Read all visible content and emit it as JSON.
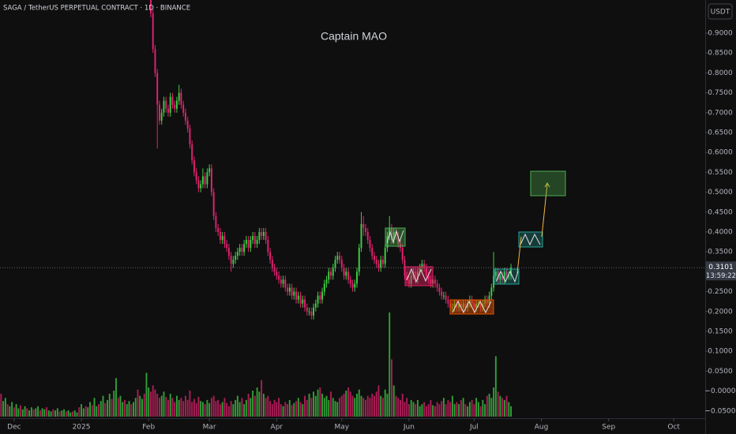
{
  "chart_data": {
    "type": "candlestick",
    "title": "SAGA / TetherUS PERPETUAL CONTRACT · 1D · BINANCE",
    "annotation": "Captain MAO",
    "currency": "USDT",
    "last_price": 0.3101,
    "countdown": "13:59:22",
    "up_color": "#3fcf45",
    "down_color": "#e2236f",
    "xlim": [
      -0.5,
      324.5
    ],
    "xticks": [
      {
        "value": 6,
        "label": "Dec"
      },
      {
        "value": 37,
        "label": "2025"
      },
      {
        "value": 68,
        "label": "Feb"
      },
      {
        "value": 96,
        "label": "Mar"
      },
      {
        "value": 127,
        "label": "Apr"
      },
      {
        "value": 157,
        "label": "May"
      },
      {
        "value": 188,
        "label": "Jun"
      },
      {
        "value": 218,
        "label": "Jul"
      },
      {
        "value": 249,
        "label": "Aug"
      },
      {
        "value": 280,
        "label": "Sep"
      },
      {
        "value": 310,
        "label": "Oct"
      }
    ],
    "ylim": [
      -0.0683,
      0.9833
    ],
    "yticks": [
      {
        "value": 0.9,
        "label": "0.9000"
      },
      {
        "value": 0.85,
        "label": "0.8500"
      },
      {
        "value": 0.8,
        "label": "0.8000"
      },
      {
        "value": 0.75,
        "label": "0.7500"
      },
      {
        "value": 0.7,
        "label": "0.7000"
      },
      {
        "value": 0.65,
        "label": "0.6500"
      },
      {
        "value": 0.6,
        "label": "0.6000"
      },
      {
        "value": 0.55,
        "label": "0.5500"
      },
      {
        "value": 0.5,
        "label": "0.5000"
      },
      {
        "value": 0.45,
        "label": "0.4500"
      },
      {
        "value": 0.4,
        "label": "0.4000"
      },
      {
        "value": 0.35,
        "label": "0.3500"
      },
      {
        "value": 0.3,
        "label": "0.3000"
      },
      {
        "value": 0.25,
        "label": "0.2500"
      },
      {
        "value": 0.2,
        "label": "0.2000"
      },
      {
        "value": 0.15,
        "label": "0.1500"
      },
      {
        "value": 0.1,
        "label": "0.1000"
      },
      {
        "value": 0.05,
        "label": "0.0500"
      },
      {
        "value": 0,
        "label": "−0.0000"
      },
      {
        "value": -0.05,
        "label": "−0.0500"
      }
    ],
    "open": [
      null,
      null,
      null,
      null,
      null,
      null,
      null,
      null,
      null,
      null,
      null,
      null,
      null,
      null,
      null,
      null,
      null,
      null,
      null,
      null,
      null,
      null,
      null,
      null,
      null,
      null,
      null,
      null,
      null,
      null,
      null,
      null,
      null,
      null,
      null,
      null,
      null,
      null,
      null,
      null,
      null,
      null,
      null,
      null,
      null,
      null,
      null,
      null,
      null,
      null,
      null,
      null,
      null,
      null,
      null,
      null,
      null,
      null,
      null,
      null,
      null,
      null,
      null,
      null,
      null,
      null,
      null,
      null,
      null,
      1.0,
      0.95,
      0.86,
      0.8,
      0.72,
      0.68,
      0.7,
      0.73,
      0.71,
      0.7,
      0.74,
      0.72,
      0.71,
      0.73,
      0.75,
      0.72,
      0.7,
      0.68,
      0.66,
      0.62,
      0.58,
      0.55,
      0.53,
      0.51,
      0.52,
      0.54,
      0.52,
      0.55,
      0.56,
      0.5,
      0.44,
      0.41,
      0.4,
      0.38,
      0.39,
      0.37,
      0.36,
      0.34,
      0.32,
      0.33,
      0.34,
      0.35,
      0.36,
      0.35,
      0.37,
      0.38,
      0.36,
      0.38,
      0.39,
      0.37,
      0.38,
      0.4,
      0.39,
      0.4,
      0.38,
      0.35,
      0.33,
      0.31,
      0.3,
      0.29,
      0.28,
      0.27,
      0.28,
      0.26,
      0.25,
      0.26,
      0.24,
      0.25,
      0.23,
      0.24,
      0.22,
      0.23,
      0.21,
      0.2,
      0.2,
      0.19,
      0.21,
      0.22,
      0.24,
      0.23,
      0.25,
      0.27,
      0.28,
      0.3,
      0.29,
      0.31,
      0.33,
      0.34,
      0.33,
      0.31,
      0.29,
      0.3,
      0.28,
      0.27,
      0.26,
      0.27,
      0.3,
      0.36,
      0.42,
      0.41,
      0.4,
      0.38,
      0.36,
      0.34,
      0.33,
      0.32,
      0.31,
      0.33,
      0.32,
      0.36,
      0.39,
      0.41,
      0.38,
      0.4,
      0.39,
      0.37,
      0.36,
      0.33,
      0.29,
      0.28,
      0.27,
      0.29,
      0.3,
      0.28,
      0.3,
      0.31,
      0.32,
      0.31,
      0.29,
      0.28,
      0.27,
      0.28,
      0.27,
      0.26,
      0.25,
      0.24,
      0.24,
      0.23,
      0.22,
      0.21,
      0.21,
      0.22,
      0.21,
      0.22,
      0.21,
      0.22,
      0.21,
      0.22,
      0.23,
      0.22,
      0.21,
      0.22,
      0.22,
      0.21,
      0.22,
      0.23,
      0.22,
      0.24,
      0.26,
      0.29,
      0.3,
      0.28,
      0.29,
      0.28,
      0.3,
      0.29,
      0.29
    ],
    "high": [
      null,
      null,
      null,
      null,
      null,
      null,
      null,
      null,
      null,
      null,
      null,
      null,
      null,
      null,
      null,
      null,
      null,
      null,
      null,
      null,
      null,
      null,
      null,
      null,
      null,
      null,
      null,
      null,
      null,
      null,
      null,
      null,
      null,
      null,
      null,
      null,
      null,
      null,
      null,
      null,
      null,
      null,
      null,
      null,
      null,
      null,
      null,
      null,
      null,
      null,
      null,
      null,
      null,
      null,
      null,
      null,
      null,
      null,
      null,
      null,
      null,
      null,
      null,
      null,
      null,
      null,
      null,
      null,
      null,
      1.01,
      0.96,
      0.87,
      0.81,
      0.73,
      0.71,
      0.74,
      0.74,
      0.72,
      0.75,
      0.75,
      0.73,
      0.74,
      0.77,
      0.76,
      0.73,
      0.71,
      0.69,
      0.67,
      0.63,
      0.59,
      0.56,
      0.54,
      0.53,
      0.56,
      0.55,
      0.56,
      0.57,
      0.57,
      0.51,
      0.45,
      0.42,
      0.41,
      0.4,
      0.4,
      0.38,
      0.37,
      0.35,
      0.34,
      0.35,
      0.36,
      0.37,
      0.37,
      0.38,
      0.39,
      0.39,
      0.39,
      0.4,
      0.4,
      0.39,
      0.41,
      0.41,
      0.41,
      0.41,
      0.39,
      0.36,
      0.34,
      0.32,
      0.31,
      0.3,
      0.29,
      0.29,
      0.29,
      0.27,
      0.27,
      0.27,
      0.26,
      0.26,
      0.25,
      0.25,
      0.24,
      0.24,
      0.22,
      0.21,
      0.21,
      0.22,
      0.23,
      0.25,
      0.25,
      0.26,
      0.28,
      0.29,
      0.31,
      0.31,
      0.32,
      0.34,
      0.35,
      0.35,
      0.34,
      0.32,
      0.31,
      0.31,
      0.29,
      0.28,
      0.28,
      0.31,
      0.37,
      0.45,
      0.44,
      0.42,
      0.41,
      0.39,
      0.37,
      0.35,
      0.34,
      0.33,
      0.34,
      0.34,
      0.37,
      0.4,
      0.44,
      0.42,
      0.41,
      0.41,
      0.4,
      0.38,
      0.37,
      0.34,
      0.3,
      0.29,
      0.3,
      0.31,
      0.31,
      0.31,
      0.32,
      0.33,
      0.33,
      0.32,
      0.3,
      0.29,
      0.29,
      0.29,
      0.28,
      0.27,
      0.26,
      0.25,
      0.25,
      0.24,
      0.23,
      0.22,
      0.23,
      0.23,
      0.23,
      0.23,
      0.23,
      0.23,
      0.23,
      0.24,
      0.24,
      0.23,
      0.23,
      0.23,
      0.23,
      0.23,
      0.24,
      0.24,
      0.25,
      0.27,
      0.35,
      0.31,
      0.31,
      0.3,
      0.3,
      0.31,
      0.31,
      0.3,
      0.32
    ],
    "low": [
      null,
      null,
      null,
      null,
      null,
      null,
      null,
      null,
      null,
      null,
      null,
      null,
      null,
      null,
      null,
      null,
      null,
      null,
      null,
      null,
      null,
      null,
      null,
      null,
      null,
      null,
      null,
      null,
      null,
      null,
      null,
      null,
      null,
      null,
      null,
      null,
      null,
      null,
      null,
      null,
      null,
      null,
      null,
      null,
      null,
      null,
      null,
      null,
      null,
      null,
      null,
      null,
      null,
      null,
      null,
      null,
      null,
      null,
      null,
      null,
      null,
      null,
      null,
      null,
      null,
      null,
      null,
      null,
      null,
      0.94,
      0.85,
      0.79,
      0.61,
      0.67,
      0.67,
      0.69,
      0.7,
      0.69,
      0.69,
      0.71,
      0.7,
      0.7,
      0.72,
      0.71,
      0.69,
      0.67,
      0.65,
      0.61,
      0.57,
      0.54,
      0.52,
      0.5,
      0.5,
      0.51,
      0.51,
      0.51,
      0.54,
      0.49,
      0.43,
      0.4,
      0.39,
      0.37,
      0.37,
      0.36,
      0.35,
      0.33,
      0.3,
      0.31,
      0.32,
      0.33,
      0.34,
      0.34,
      0.34,
      0.36,
      0.35,
      0.35,
      0.37,
      0.36,
      0.36,
      0.37,
      0.38,
      0.38,
      0.37,
      0.34,
      0.32,
      0.3,
      0.29,
      0.28,
      0.27,
      0.26,
      0.26,
      0.25,
      0.24,
      0.24,
      0.23,
      0.23,
      0.22,
      0.22,
      0.21,
      0.21,
      0.2,
      0.19,
      0.19,
      0.18,
      0.18,
      0.2,
      0.21,
      0.22,
      0.22,
      0.24,
      0.26,
      0.27,
      0.28,
      0.28,
      0.3,
      0.32,
      0.32,
      0.3,
      0.28,
      0.28,
      0.27,
      0.26,
      0.25,
      0.25,
      0.26,
      0.29,
      0.35,
      0.39,
      0.39,
      0.37,
      0.35,
      0.33,
      0.32,
      0.31,
      0.3,
      0.3,
      0.31,
      0.31,
      0.35,
      0.38,
      0.37,
      0.37,
      0.38,
      0.36,
      0.35,
      0.32,
      0.28,
      0.27,
      0.26,
      0.26,
      0.28,
      0.27,
      0.27,
      0.29,
      0.3,
      0.3,
      0.28,
      0.27,
      0.26,
      0.26,
      0.26,
      0.25,
      0.24,
      0.23,
      0.23,
      0.22,
      0.21,
      0.2,
      0.2,
      0.2,
      0.2,
      0.2,
      0.2,
      0.2,
      0.2,
      0.2,
      0.21,
      0.21,
      0.2,
      0.2,
      0.21,
      0.2,
      0.2,
      0.21,
      0.21,
      0.21,
      0.23,
      0.25,
      0.28,
      0.27,
      0.27,
      0.27,
      0.27,
      0.28,
      0.28,
      0.28
    ],
    "close": [
      null,
      null,
      null,
      null,
      null,
      null,
      null,
      null,
      null,
      null,
      null,
      null,
      null,
      null,
      null,
      null,
      null,
      null,
      null,
      null,
      null,
      null,
      null,
      null,
      null,
      null,
      null,
      null,
      null,
      null,
      null,
      null,
      null,
      null,
      null,
      null,
      null,
      null,
      null,
      null,
      null,
      null,
      null,
      null,
      null,
      null,
      null,
      null,
      null,
      null,
      null,
      null,
      null,
      null,
      null,
      null,
      null,
      null,
      null,
      null,
      null,
      null,
      null,
      null,
      null,
      null,
      null,
      null,
      null,
      0.95,
      0.86,
      0.8,
      0.72,
      0.68,
      0.7,
      0.73,
      0.71,
      0.7,
      0.74,
      0.72,
      0.71,
      0.73,
      0.75,
      0.72,
      0.7,
      0.68,
      0.66,
      0.62,
      0.58,
      0.55,
      0.53,
      0.51,
      0.52,
      0.54,
      0.52,
      0.55,
      0.56,
      0.5,
      0.44,
      0.41,
      0.4,
      0.38,
      0.39,
      0.37,
      0.36,
      0.34,
      0.32,
      0.33,
      0.34,
      0.35,
      0.36,
      0.35,
      0.37,
      0.38,
      0.36,
      0.38,
      0.39,
      0.37,
      0.38,
      0.4,
      0.39,
      0.4,
      0.38,
      0.35,
      0.33,
      0.31,
      0.3,
      0.29,
      0.28,
      0.27,
      0.28,
      0.26,
      0.25,
      0.26,
      0.24,
      0.25,
      0.23,
      0.24,
      0.22,
      0.23,
      0.21,
      0.2,
      0.2,
      0.19,
      0.21,
      0.22,
      0.24,
      0.23,
      0.25,
      0.27,
      0.28,
      0.3,
      0.29,
      0.31,
      0.33,
      0.34,
      0.33,
      0.31,
      0.29,
      0.3,
      0.28,
      0.27,
      0.26,
      0.27,
      0.3,
      0.36,
      0.42,
      0.41,
      0.4,
      0.38,
      0.36,
      0.34,
      0.33,
      0.32,
      0.31,
      0.33,
      0.32,
      0.36,
      0.39,
      0.41,
      0.38,
      0.4,
      0.39,
      0.37,
      0.36,
      0.33,
      0.29,
      0.28,
      0.27,
      0.29,
      0.3,
      0.28,
      0.3,
      0.31,
      0.32,
      0.31,
      0.29,
      0.28,
      0.27,
      0.28,
      0.27,
      0.26,
      0.25,
      0.24,
      0.24,
      0.23,
      0.22,
      0.21,
      0.21,
      0.22,
      0.21,
      0.22,
      0.21,
      0.22,
      0.21,
      0.22,
      0.23,
      0.22,
      0.21,
      0.22,
      0.22,
      0.21,
      0.22,
      0.23,
      0.22,
      0.24,
      0.26,
      0.29,
      0.3,
      0.28,
      0.29,
      0.28,
      0.3,
      0.29,
      0.29,
      0.31
    ],
    "volume": [
      22,
      15,
      18,
      12,
      10,
      14,
      9,
      12,
      8,
      11,
      7,
      10,
      8,
      6,
      9,
      7,
      8,
      10,
      6,
      8,
      7,
      9,
      6,
      5,
      7,
      6,
      8,
      5,
      6,
      7,
      5,
      6,
      4,
      5,
      6,
      4,
      9,
      12,
      8,
      10,
      9,
      14,
      11,
      18,
      10,
      12,
      15,
      20,
      13,
      16,
      22,
      17,
      25,
      37,
      18,
      20,
      14,
      16,
      12,
      15,
      12,
      14,
      18,
      26,
      20,
      17,
      22,
      42,
      28,
      24,
      30,
      26,
      22,
      18,
      20,
      24,
      19,
      16,
      22,
      18,
      14,
      20,
      16,
      18,
      15,
      20,
      16,
      25,
      14,
      17,
      13,
      19,
      15,
      14,
      12,
      16,
      13,
      18,
      20,
      15,
      16,
      12,
      14,
      18,
      13,
      10,
      15,
      12,
      16,
      20,
      14,
      18,
      12,
      16,
      22,
      18,
      25,
      20,
      28,
      24,
      35,
      22,
      18,
      20,
      15,
      12,
      16,
      14,
      18,
      12,
      10,
      14,
      12,
      16,
      11,
      13,
      15,
      18,
      14,
      12,
      20,
      16,
      22,
      18,
      24,
      20,
      26,
      28,
      22,
      18,
      20,
      16,
      24,
      18,
      15,
      14,
      18,
      20,
      22,
      25,
      28,
      24,
      20,
      18,
      22,
      26,
      20,
      18,
      16,
      20,
      18,
      22,
      20,
      24,
      30,
      20,
      18,
      26,
      22,
      100,
      55,
      30,
      20,
      18,
      16,
      22,
      14,
      18,
      12,
      16,
      14,
      12,
      16,
      10,
      12,
      14,
      10,
      12,
      16,
      11,
      10,
      14,
      12,
      15,
      18,
      12,
      16,
      14,
      20,
      12,
      14,
      12,
      16,
      18,
      12,
      10,
      14,
      16,
      12,
      18,
      14,
      10,
      16,
      12,
      20,
      22,
      18,
      28,
      58,
      24,
      20,
      18,
      16,
      20,
      14,
      10
    ]
  }
}
